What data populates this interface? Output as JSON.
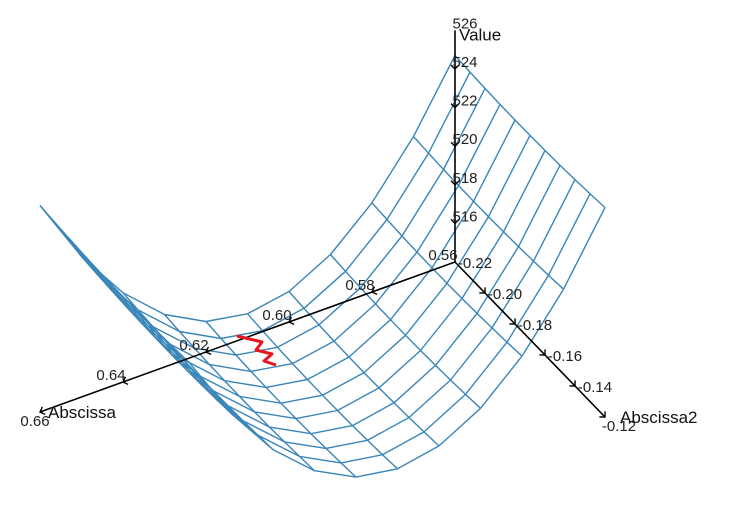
{
  "chart_data": {
    "type": "surface3d",
    "title": "",
    "axes": {
      "x": {
        "label": "Abscissa",
        "ticks": [
          "0.56",
          "0.58",
          "0.60",
          "0.62",
          "0.64",
          "0.66"
        ],
        "range": [
          0.56,
          0.66
        ]
      },
      "y": {
        "label": "Abscissa2",
        "ticks": [
          "-0.22",
          "-0.20",
          "-0.18",
          "-0.16",
          "-0.14",
          "-0.12"
        ],
        "range": [
          -0.22,
          -0.12
        ]
      },
      "z": {
        "label": "Value",
        "ticks": [
          "516",
          "518",
          "520",
          "522",
          "524",
          "526"
        ],
        "range": [
          516,
          526
        ]
      }
    },
    "surface": {
      "color": "#3a86b8",
      "x_range": [
        0.56,
        0.66
      ],
      "y_range": [
        -0.22,
        -0.12
      ],
      "grid": [
        11,
        11
      ],
      "description_values": "bowl/valley surface with minimum near x=0.61"
    },
    "path": {
      "color": "#e8141c",
      "points": [
        [
          0.617,
          -0.222,
          515.6
        ],
        [
          0.615,
          -0.221,
          515.4
        ],
        [
          0.616,
          -0.219,
          515.3
        ],
        [
          0.613,
          -0.218,
          515.2
        ],
        [
          0.614,
          -0.216,
          515.0
        ],
        [
          0.612,
          -0.215,
          514.9
        ]
      ]
    }
  }
}
